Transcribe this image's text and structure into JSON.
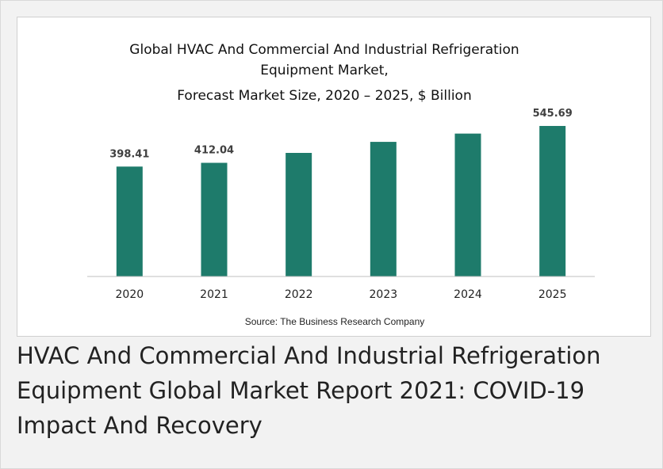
{
  "chart_data": {
    "type": "bar",
    "title": [
      "Global HVAC And Commercial And Industrial Refrigeration",
      "Equipment Market,",
      "Forecast Market Size, 2020 – 2025, $ Billion"
    ],
    "categories": [
      "2020",
      "2021",
      "2022",
      "2023",
      "2024",
      "2025"
    ],
    "values": [
      398.41,
      412.04,
      448,
      488,
      518,
      545.69
    ],
    "data_labels": [
      "398.41",
      "412.04",
      "",
      "",
      "",
      "545.69"
    ],
    "xlabel": "",
    "ylabel": "",
    "ylim": [
      0,
      560
    ],
    "bar_color": "#1e7b6b",
    "axis_color": "#bfbfbf",
    "grid": false,
    "source": "Source: The Business Research Company"
  },
  "headline": "HVAC And Commercial And Industrial Refrigeration Equipment Global Market Report 2021: COVID-19 Impact And Recovery"
}
